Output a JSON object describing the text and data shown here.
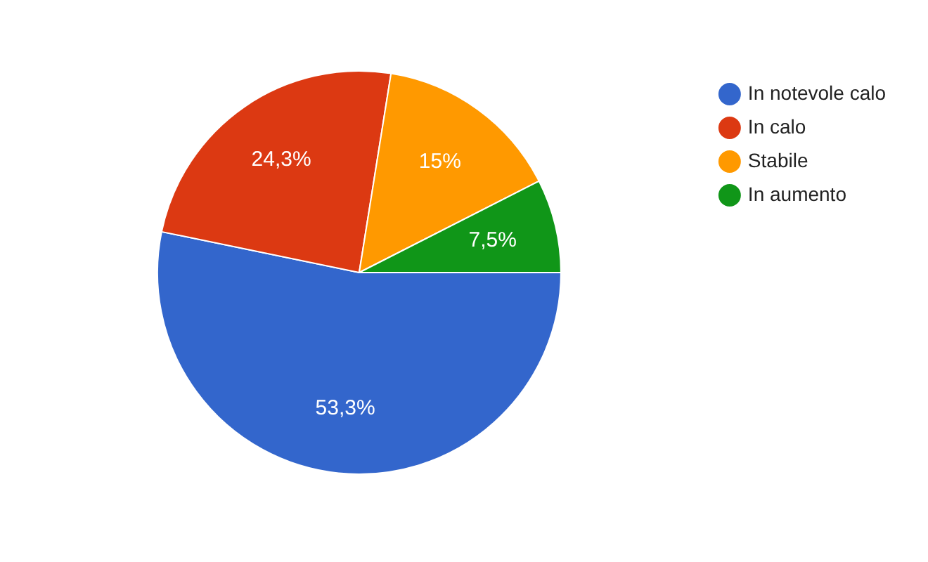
{
  "chart_data": {
    "type": "pie",
    "categories": [
      "In notevole calo",
      "In calo",
      "Stabile",
      "In aumento"
    ],
    "values": [
      53.3,
      24.3,
      15,
      7.5
    ],
    "colors": [
      "#3366cc",
      "#dc3912",
      "#ff9900",
      "#109618"
    ],
    "value_labels": [
      "53,3%",
      "24,3%",
      "15%",
      "7,5%"
    ],
    "legend": "top right"
  }
}
